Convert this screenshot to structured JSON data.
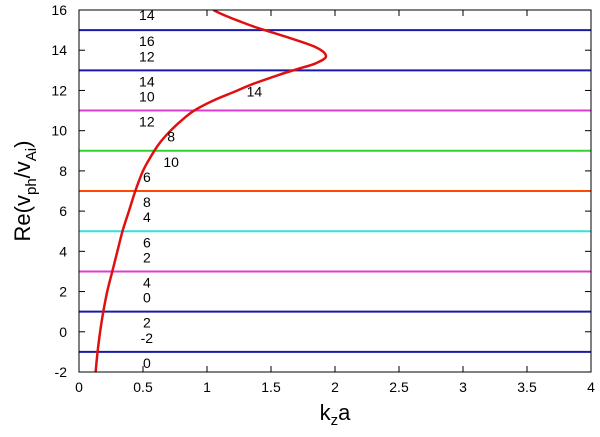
{
  "chart_data": {
    "type": "line",
    "title": "",
    "xlabel": {
      "main": "k",
      "sub": "z",
      "tail": "a"
    },
    "ylabel": {
      "pre": "Re(v",
      "sub1": "ph",
      "mid": "/v",
      "sub2": "Ai",
      "post": ")"
    },
    "xlim": [
      0,
      4
    ],
    "ylim": [
      -2,
      16
    ],
    "xticks": [
      "0",
      "0.5",
      "1",
      "1.5",
      "2",
      "2.5",
      "3",
      "3.5",
      "4"
    ],
    "yticks": [
      "-2",
      "0",
      "2",
      "4",
      "6",
      "8",
      "10",
      "12",
      "14",
      "16"
    ],
    "grid": false,
    "horizontal_lines": [
      {
        "y": -1,
        "color": "#1a1aa6"
      },
      {
        "y": 1,
        "color": "#1a1aa6"
      },
      {
        "y": 3,
        "color": "#d93cd0"
      },
      {
        "y": 5,
        "color": "#33e0e0"
      },
      {
        "y": 7,
        "color": "#ff4a00"
      },
      {
        "y": 9,
        "color": "#2ed52e"
      },
      {
        "y": 11,
        "color": "#d93cd0"
      },
      {
        "y": 13,
        "color": "#1a1aa6"
      },
      {
        "y": 15,
        "color": "#1a1aa6"
      }
    ],
    "series": [
      {
        "color": "#e01010",
        "x": [
          0.13,
          0.145,
          0.165,
          0.19,
          0.22,
          0.26,
          0.3,
          0.34,
          0.39,
          0.44,
          0.5,
          0.56,
          0.62,
          0.7,
          0.8,
          0.9,
          1.05,
          1.2,
          1.35,
          1.55,
          1.7,
          1.85,
          1.93,
          1.85,
          1.6,
          1.4,
          1.25,
          1.15,
          1.08,
          1.05
        ],
        "y": [
          -2,
          -1,
          0,
          1,
          2,
          3,
          4,
          5,
          6,
          7,
          8,
          8.7,
          9.3,
          9.9,
          10.5,
          11,
          11.5,
          11.9,
          12.3,
          12.75,
          13.05,
          13.35,
          13.7,
          14.15,
          14.7,
          15.1,
          15.45,
          15.7,
          15.9,
          16
        ]
      }
    ],
    "annotations": [
      {
        "text": "14",
        "x": 0.53,
        "y": 15.75
      },
      {
        "text": "16",
        "x": 0.53,
        "y": 14.45
      },
      {
        "text": "12",
        "x": 0.53,
        "y": 13.7
      },
      {
        "text": "14",
        "x": 0.53,
        "y": 12.45
      },
      {
        "text": "14",
        "x": 1.37,
        "y": 11.95
      },
      {
        "text": "10",
        "x": 0.53,
        "y": 11.7
      },
      {
        "text": "12",
        "x": 0.53,
        "y": 10.45
      },
      {
        "text": "8",
        "x": 0.72,
        "y": 9.7
      },
      {
        "text": "10",
        "x": 0.72,
        "y": 8.45
      },
      {
        "text": "6",
        "x": 0.53,
        "y": 7.7
      },
      {
        "text": "8",
        "x": 0.53,
        "y": 6.45
      },
      {
        "text": "4",
        "x": 0.53,
        "y": 5.7
      },
      {
        "text": "6",
        "x": 0.53,
        "y": 4.45
      },
      {
        "text": "2",
        "x": 0.53,
        "y": 3.7
      },
      {
        "text": "4",
        "x": 0.53,
        "y": 2.45
      },
      {
        "text": "0",
        "x": 0.53,
        "y": 1.7
      },
      {
        "text": "2",
        "x": 0.53,
        "y": 0.45
      },
      {
        "text": "-2",
        "x": 0.53,
        "y": -0.3
      },
      {
        "text": "0",
        "x": 0.53,
        "y": -1.55
      }
    ]
  }
}
